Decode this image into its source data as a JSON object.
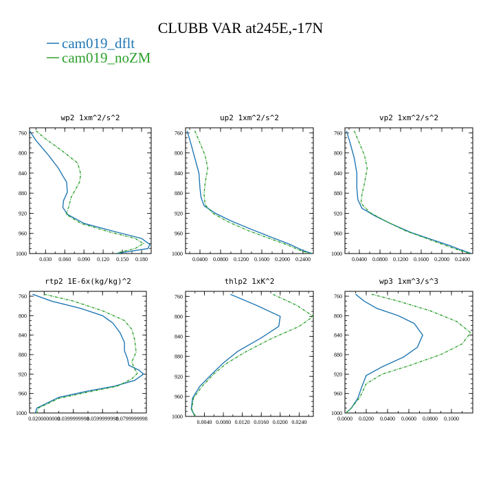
{
  "figure": {
    "title": "CLUBB VAR at245E,-17N"
  },
  "legend": [
    {
      "name": "cam019_dflt",
      "color": "#1f77b4",
      "dashed": false
    },
    {
      "name": "cam019_noZM",
      "color": "#2ca02c",
      "dashed": true
    }
  ],
  "chart_data": [
    {
      "type": "line",
      "title": "wp2  1xm^2/s^2",
      "ylim": [
        1000,
        750
      ],
      "xlim": [
        0.005,
        0.195
      ],
      "yticks": [
        "760",
        "800",
        "840",
        "880",
        "920",
        "960",
        "1000"
      ],
      "xticks": [
        "0.030",
        "0.060",
        "0.090",
        "0.120",
        "0.150",
        "0.180"
      ],
      "series": [
        {
          "name": "cam019_dflt",
          "points": [
            [
              0.005,
              756
            ],
            [
              0.015,
              775
            ],
            [
              0.035,
              805
            ],
            [
              0.05,
              830
            ],
            [
              0.058,
              848
            ],
            [
              0.063,
              858
            ],
            [
              0.064,
              878
            ],
            [
              0.058,
              895
            ],
            [
              0.057,
              908
            ],
            [
              0.064,
              922
            ],
            [
              0.09,
              940
            ],
            [
              0.14,
              957
            ],
            [
              0.18,
              970
            ],
            [
              0.193,
              982
            ],
            [
              0.19,
              990
            ],
            [
              0.16,
              996
            ],
            [
              0.14,
              1000
            ]
          ]
        },
        {
          "name": "cam019_noZM",
          "points": [
            [
              0.015,
              756
            ],
            [
              0.03,
              772
            ],
            [
              0.055,
              795
            ],
            [
              0.08,
              820
            ],
            [
              0.085,
              842
            ],
            [
              0.083,
              858
            ],
            [
              0.077,
              872
            ],
            [
              0.07,
              888
            ],
            [
              0.066,
              908
            ],
            [
              0.062,
              922
            ],
            [
              0.085,
              940
            ],
            [
              0.13,
              957
            ],
            [
              0.17,
              970
            ],
            [
              0.183,
              980
            ],
            [
              0.17,
              990
            ],
            [
              0.15,
              996
            ],
            [
              0.14,
              1000
            ]
          ]
        }
      ]
    },
    {
      "type": "line",
      "title": "up2  1xm^2/s^2",
      "ylim": [
        1000,
        750
      ],
      "xlim": [
        0.012,
        0.26
      ],
      "yticks": [
        "760",
        "800",
        "840",
        "880",
        "920",
        "960",
        "1000"
      ],
      "xticks": [
        "0.0400",
        "0.0800",
        "0.1200",
        "0.1600",
        "0.2000",
        "0.2400"
      ],
      "series": [
        {
          "name": "cam019_dflt",
          "points": [
            [
              0.015,
              756
            ],
            [
              0.022,
              780
            ],
            [
              0.03,
              810
            ],
            [
              0.038,
              840
            ],
            [
              0.04,
              870
            ],
            [
              0.042,
              888
            ],
            [
              0.048,
              905
            ],
            [
              0.07,
              920
            ],
            [
              0.1,
              935
            ],
            [
              0.14,
              952
            ],
            [
              0.18,
              968
            ],
            [
              0.215,
              982
            ],
            [
              0.24,
              994
            ],
            [
              0.258,
              1000
            ]
          ]
        },
        {
          "name": "cam019_noZM",
          "points": [
            [
              0.03,
              756
            ],
            [
              0.04,
              780
            ],
            [
              0.05,
              805
            ],
            [
              0.055,
              830
            ],
            [
              0.05,
              860
            ],
            [
              0.048,
              882
            ],
            [
              0.05,
              903
            ],
            [
              0.065,
              920
            ],
            [
              0.095,
              937
            ],
            [
              0.135,
              955
            ],
            [
              0.175,
              970
            ],
            [
              0.21,
              983
            ],
            [
              0.235,
              994
            ],
            [
              0.255,
              1000
            ]
          ]
        }
      ]
    },
    {
      "type": "line",
      "title": "vp2  1xm^2/s^2",
      "ylim": [
        1000,
        750
      ],
      "xlim": [
        0.012,
        0.26
      ],
      "yticks": [
        "760",
        "800",
        "840",
        "880",
        "920",
        "960",
        "1000"
      ],
      "xticks": [
        "0.0400",
        "0.0800",
        "0.1200",
        "0.1600",
        "0.2000",
        "0.2400"
      ],
      "series": [
        {
          "name": "cam019_dflt",
          "points": [
            [
              0.015,
              756
            ],
            [
              0.022,
              780
            ],
            [
              0.03,
              810
            ],
            [
              0.035,
              840
            ],
            [
              0.035,
              870
            ],
            [
              0.037,
              893
            ],
            [
              0.045,
              910
            ],
            [
              0.07,
              925
            ],
            [
              0.1,
              940
            ],
            [
              0.14,
              958
            ],
            [
              0.18,
              972
            ],
            [
              0.215,
              984
            ],
            [
              0.24,
              994
            ],
            [
              0.258,
              1000
            ]
          ]
        },
        {
          "name": "cam019_noZM",
          "points": [
            [
              0.03,
              756
            ],
            [
              0.04,
              780
            ],
            [
              0.05,
              805
            ],
            [
              0.055,
              830
            ],
            [
              0.05,
              860
            ],
            [
              0.045,
              882
            ],
            [
              0.043,
              900
            ],
            [
              0.06,
              918
            ],
            [
              0.09,
              935
            ],
            [
              0.13,
              955
            ],
            [
              0.17,
              970
            ],
            [
              0.205,
              983
            ],
            [
              0.235,
              994
            ],
            [
              0.255,
              1000
            ]
          ]
        }
      ]
    },
    {
      "type": "line",
      "title": "rtp2  1E-6x(kg/kg)^2",
      "ylim": [
        1000,
        750
      ],
      "xlim": [
        0.01,
        0.09
      ],
      "yticks": [
        "760",
        "800",
        "840",
        "880",
        "920",
        "960",
        "1000"
      ],
      "xticks": [
        "0.0200000000",
        "0.0399999998",
        "0.0599999998",
        "0.0799999998"
      ],
      "series": [
        {
          "name": "cam019_dflt",
          "points": [
            [
              0.012,
              756
            ],
            [
              0.025,
              770
            ],
            [
              0.045,
              785
            ],
            [
              0.06,
              800
            ],
            [
              0.067,
              815
            ],
            [
              0.072,
              835
            ],
            [
              0.075,
              855
            ],
            [
              0.075,
              872
            ],
            [
              0.077,
              888
            ],
            [
              0.078,
              902
            ],
            [
              0.085,
              912
            ],
            [
              0.088,
              920
            ],
            [
              0.082,
              933
            ],
            [
              0.068,
              945
            ],
            [
              0.05,
              955
            ],
            [
              0.03,
              968
            ],
            [
              0.015,
              990
            ],
            [
              0.014,
              1000
            ]
          ]
        },
        {
          "name": "cam019_noZM",
          "points": [
            [
              0.02,
              756
            ],
            [
              0.04,
              770
            ],
            [
              0.06,
              790
            ],
            [
              0.075,
              810
            ],
            [
              0.08,
              828
            ],
            [
              0.082,
              850
            ],
            [
              0.083,
              875
            ],
            [
              0.08,
              895
            ],
            [
              0.082,
              910
            ],
            [
              0.084,
              918
            ],
            [
              0.08,
              930
            ],
            [
              0.07,
              945
            ],
            [
              0.05,
              957
            ],
            [
              0.03,
              970
            ],
            [
              0.016,
              990
            ],
            [
              0.015,
              1000
            ]
          ]
        }
      ]
    },
    {
      "type": "line",
      "title": "thlp2  1xK^2",
      "ylim": [
        1000,
        750
      ],
      "xlim": [
        0.0,
        0.027
      ],
      "yticks": [
        "760",
        "800",
        "840",
        "880",
        "920",
        "960",
        "1000"
      ],
      "xticks": [
        "0.0040",
        "0.0080",
        "0.0120",
        "0.0160",
        "0.0200",
        "0.0240"
      ],
      "series": [
        {
          "name": "cam019_dflt",
          "points": [
            [
              0.0095,
              756
            ],
            [
              0.015,
              778
            ],
            [
              0.02,
              800
            ],
            [
              0.0197,
              820
            ],
            [
              0.016,
              843
            ],
            [
              0.011,
              870
            ],
            [
              0.008,
              893
            ],
            [
              0.0056,
              915
            ],
            [
              0.003,
              940
            ],
            [
              0.0015,
              963
            ],
            [
              0.0012,
              985
            ],
            [
              0.002,
              1000
            ]
          ]
        },
        {
          "name": "cam019_noZM",
          "points": [
            [
              0.0185,
              756
            ],
            [
              0.0235,
              778
            ],
            [
              0.027,
              800
            ],
            [
              0.024,
              820
            ],
            [
              0.018,
              845
            ],
            [
              0.0125,
              872
            ],
            [
              0.0085,
              895
            ],
            [
              0.006,
              915
            ],
            [
              0.0035,
              940
            ],
            [
              0.0017,
              963
            ],
            [
              0.0013,
              985
            ],
            [
              0.002,
              1000
            ]
          ]
        }
      ]
    },
    {
      "type": "line",
      "title": "wp3  1xm^3/s^3",
      "ylim": [
        1000,
        750
      ],
      "xlim": [
        0.0,
        0.12
      ],
      "yticks": [
        "760",
        "800",
        "840",
        "880",
        "920",
        "960",
        "1000"
      ],
      "xticks": [
        "0.0000",
        "0.0200",
        "0.0400",
        "0.0600",
        "0.0800",
        "0.1000"
      ],
      "series": [
        {
          "name": "cam019_dflt",
          "points": [
            [
              0.01,
              756
            ],
            [
              0.018,
              770
            ],
            [
              0.03,
              785
            ],
            [
              0.05,
              800
            ],
            [
              0.065,
              816
            ],
            [
              0.073,
              840
            ],
            [
              0.068,
              865
            ],
            [
              0.055,
              885
            ],
            [
              0.035,
              905
            ],
            [
              0.02,
              923
            ],
            [
              0.016,
              945
            ],
            [
              0.012,
              970
            ],
            [
              0.006,
              990
            ],
            [
              0.001,
              1000
            ]
          ]
        },
        {
          "name": "cam019_noZM",
          "points": [
            [
              0.025,
              756
            ],
            [
              0.05,
              770
            ],
            [
              0.08,
              790
            ],
            [
              0.105,
              812
            ],
            [
              0.118,
              835
            ],
            [
              0.11,
              858
            ],
            [
              0.09,
              880
            ],
            [
              0.06,
              903
            ],
            [
              0.035,
              920
            ],
            [
              0.02,
              940
            ],
            [
              0.014,
              968
            ],
            [
              0.006,
              990
            ],
            [
              0.001,
              1000
            ]
          ]
        }
      ]
    }
  ]
}
